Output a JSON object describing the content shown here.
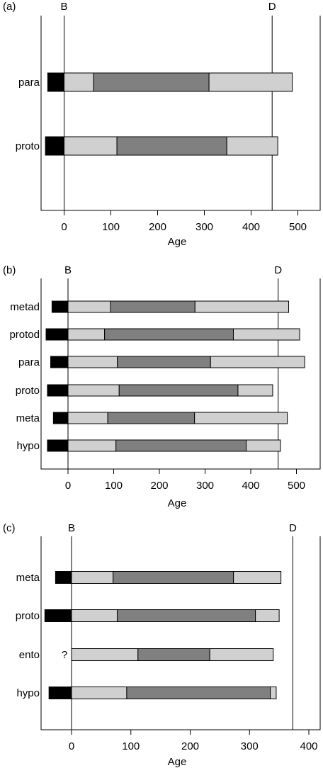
{
  "chart_data": [
    {
      "type": "bar",
      "panel_label": "(a)",
      "xlabel": "Age",
      "xlim": [
        -50,
        550
      ],
      "xticks": [
        0,
        100,
        200,
        300,
        400,
        500
      ],
      "markers": [
        {
          "label": "B",
          "x": 0
        },
        {
          "label": "D",
          "x": 445
        }
      ],
      "categories": [
        "para",
        "proto"
      ],
      "series": [
        {
          "values": [
            -35,
            -40
          ],
          "color": "#000000"
        },
        {
          "values": [
            [
              0,
              63
            ],
            [
              0,
              113
            ]
          ],
          "color": "#d0d0d0"
        },
        {
          "values": [
            [
              63,
              310
            ],
            [
              113,
              348
            ]
          ],
          "color": "#808080"
        },
        {
          "values": [
            [
              310,
              488
            ],
            [
              348,
              457
            ]
          ],
          "color": "#d0d0d0"
        }
      ]
    },
    {
      "type": "bar",
      "panel_label": "(b)",
      "xlabel": "Age",
      "xlim": [
        -55,
        550
      ],
      "xticks": [
        0,
        100,
        200,
        300,
        400,
        500
      ],
      "markers": [
        {
          "label": "B",
          "x": 0
        },
        {
          "label": "D",
          "x": 460
        }
      ],
      "categories": [
        "metad",
        "protod",
        "para",
        "proto",
        "meta",
        "hypo"
      ],
      "series": [
        {
          "values": [
            -35,
            -48,
            -38,
            -45,
            -32,
            -45
          ],
          "color": "#000000"
        },
        {
          "values": [
            [
              0,
              93
            ],
            [
              0,
              80
            ],
            [
              0,
              108
            ],
            [
              0,
              112
            ],
            [
              0,
              87
            ],
            [
              0,
              105
            ]
          ],
          "color": "#d0d0d0"
        },
        {
          "values": [
            [
              93,
              278
            ],
            [
              80,
              362
            ],
            [
              108,
              312
            ],
            [
              112,
              372
            ],
            [
              87,
              277
            ],
            [
              105,
              390
            ]
          ],
          "color": "#808080"
        },
        {
          "values": [
            [
              278,
              483
            ],
            [
              362,
              507
            ],
            [
              312,
              518
            ],
            [
              372,
              448
            ],
            [
              277,
              480
            ],
            [
              390,
              465
            ]
          ],
          "color": "#d0d0d0"
        }
      ]
    },
    {
      "type": "bar",
      "panel_label": "(c)",
      "xlabel": "Age",
      "xlim": [
        -50,
        430
      ],
      "xticks": [
        0,
        100,
        200,
        300,
        400
      ],
      "markers": [
        {
          "label": "B",
          "x": 0
        },
        {
          "label": "D",
          "x": 373
        }
      ],
      "categories": [
        "meta",
        "proto",
        "ento",
        "hypo"
      ],
      "series": [
        {
          "values": [
            -27,
            -45,
            null,
            -38
          ],
          "color": "#000000"
        },
        {
          "values": [
            [
              0,
              70
            ],
            [
              0,
              77
            ],
            [
              0,
              112
            ],
            [
              0,
              93
            ]
          ],
          "color": "#d0d0d0"
        },
        {
          "values": [
            [
              70,
              273
            ],
            [
              77,
              310
            ],
            [
              112,
              233
            ],
            [
              93,
              335
            ]
          ],
          "color": "#808080"
        },
        {
          "values": [
            [
              273,
              353
            ],
            [
              310,
              350
            ],
            [
              233,
              340
            ],
            [
              335,
              345
            ]
          ],
          "color": "#d0d0d0"
        }
      ],
      "annotations": [
        {
          "category": "ento",
          "text": "?"
        }
      ]
    }
  ]
}
